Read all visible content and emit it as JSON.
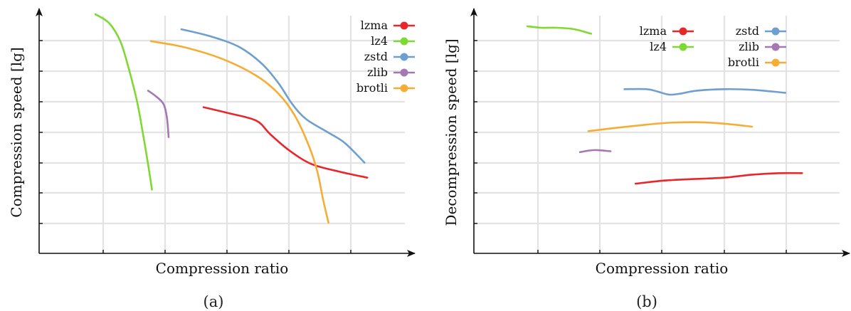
{
  "chart_data": [
    {
      "type": "line",
      "caption": "(a)",
      "xlabel": "Compression ratio",
      "ylabel": "Compression speed [lg]",
      "x_tick_labels": "none",
      "y_tick_labels": "none",
      "grid": true,
      "legend_position": "top-right",
      "legend_columns": 1,
      "xlim": [
        0,
        6
      ],
      "ylim": [
        0,
        7.5
      ],
      "series": [
        {
          "name": "lzma",
          "color": "#e8272c",
          "x": [
            2.45,
            2.9,
            3.4,
            3.65,
            4.0,
            4.4,
            4.9,
            5.4
          ],
          "y": [
            4.4,
            4.2,
            3.95,
            3.5,
            2.95,
            2.5,
            2.25,
            2.05
          ]
        },
        {
          "name": "lz4",
          "color": "#7ed932",
          "x": [
            0.5,
            0.75,
            0.95,
            1.1,
            1.25,
            1.35,
            1.45,
            1.52
          ],
          "y": [
            7.5,
            7.2,
            6.6,
            5.7,
            4.6,
            3.6,
            2.5,
            1.65
          ]
        },
        {
          "name": "zstd",
          "color": "#6f9fd0",
          "x": [
            2.05,
            2.6,
            3.1,
            3.5,
            3.8,
            4.05,
            4.3,
            4.7,
            5.0,
            5.35
          ],
          "y": [
            7.0,
            6.75,
            6.4,
            5.85,
            5.2,
            4.5,
            4.0,
            3.55,
            3.2,
            2.55
          ]
        },
        {
          "name": "zlib",
          "color": "#a678b3",
          "x": [
            1.45,
            1.6,
            1.73,
            1.79,
            1.82
          ],
          "y": [
            4.95,
            4.75,
            4.5,
            4.05,
            3.4
          ]
        },
        {
          "name": "brotli",
          "color": "#f7ad35",
          "x": [
            1.5,
            2.1,
            2.8,
            3.4,
            3.8,
            4.1,
            4.35,
            4.5,
            4.6,
            4.7
          ],
          "y": [
            6.6,
            6.4,
            6.0,
            5.45,
            4.85,
            4.1,
            3.1,
            2.25,
            1.35,
            0.55
          ]
        }
      ]
    },
    {
      "type": "line",
      "caption": "(b)",
      "xlabel": "Compression ratio",
      "ylabel": "Decompression speed [lg]",
      "x_tick_labels": "none",
      "y_tick_labels": "none",
      "grid": true,
      "legend_position": "top-right",
      "legend_columns": 2,
      "xlim": [
        0,
        6
      ],
      "ylim": [
        0,
        7.5
      ],
      "series": [
        {
          "name": "lzma",
          "color": "#e8272c",
          "x": [
            2.4,
            2.9,
            3.4,
            4.0,
            4.5,
            5.0,
            5.4
          ],
          "y": [
            1.85,
            1.95,
            2.0,
            2.05,
            2.15,
            2.2,
            2.2
          ]
        },
        {
          "name": "lz4",
          "color": "#7ed932",
          "x": [
            0.45,
            0.7,
            1.0,
            1.3,
            1.6
          ],
          "y": [
            7.1,
            7.05,
            7.05,
            7.0,
            6.85
          ]
        },
        {
          "name": "zstd",
          "color": "#6f9fd0",
          "x": [
            2.2,
            2.6,
            2.8,
            3.0,
            3.2,
            3.5,
            4.0,
            4.5,
            5.1
          ],
          "y": [
            5.0,
            5.0,
            4.92,
            4.82,
            4.85,
            4.95,
            5.0,
            4.98,
            4.88
          ]
        },
        {
          "name": "zlib",
          "color": "#a678b3",
          "x": [
            1.4,
            1.55,
            1.7,
            1.95
          ],
          "y": [
            2.9,
            2.95,
            2.97,
            2.93
          ]
        },
        {
          "name": "brotli",
          "color": "#f7ad35",
          "x": [
            1.55,
            2.0,
            2.5,
            3.0,
            3.5,
            4.0,
            4.5
          ],
          "y": [
            3.6,
            3.7,
            3.8,
            3.88,
            3.9,
            3.85,
            3.75
          ]
        }
      ]
    }
  ]
}
